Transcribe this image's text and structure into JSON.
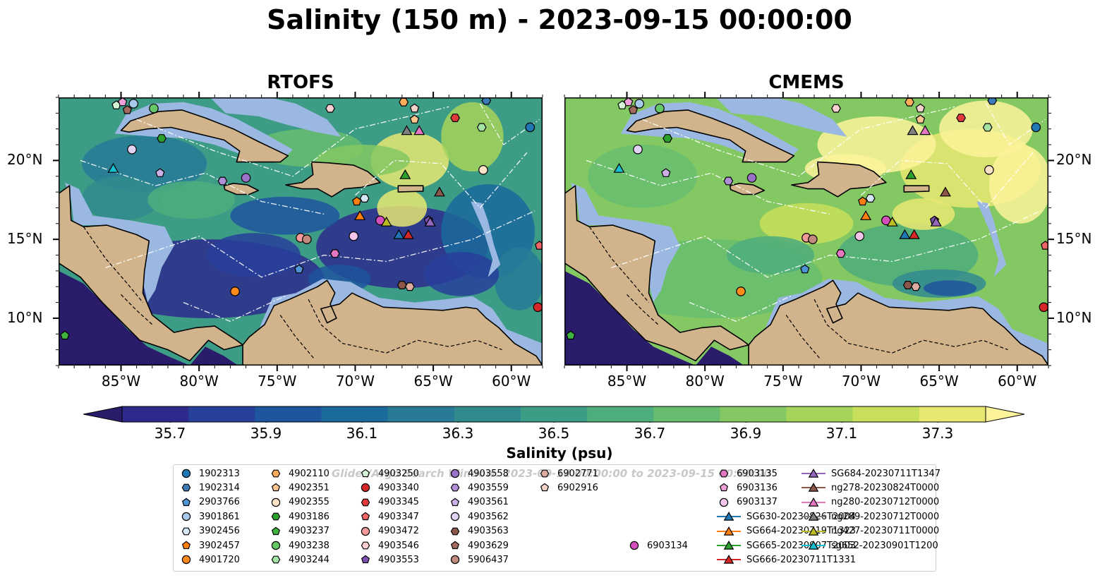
{
  "title": "Salinity (150 m) - 2023-09-15 00:00:00",
  "panels": [
    {
      "name": "RTOFS",
      "theme": "rtofs"
    },
    {
      "name": "CMEMS",
      "theme": "cmems"
    }
  ],
  "map": {
    "lon_range": [
      -89,
      -58
    ],
    "lat_range": [
      7,
      24
    ],
    "lon_ticks": [
      {
        "value": -85,
        "label": "85°W"
      },
      {
        "value": -80,
        "label": "80°W"
      },
      {
        "value": -75,
        "label": "75°W"
      },
      {
        "value": -70,
        "label": "70°W"
      },
      {
        "value": -65,
        "label": "65°W"
      },
      {
        "value": -60,
        "label": "60°W"
      }
    ],
    "lat_ticks": [
      {
        "value": 10,
        "label": "10°N"
      },
      {
        "value": 15,
        "label": "15°N"
      },
      {
        "value": 20,
        "label": "20°N"
      }
    ],
    "colors": {
      "land": "#d2b48c",
      "shelf": "#9bb8e2",
      "coast": "#000000"
    }
  },
  "colorbar": {
    "label": "Salinity (psu)",
    "min": 35.6,
    "max": 37.4,
    "ticks": [
      {
        "value": 35.7,
        "label": "35.7"
      },
      {
        "value": 35.9,
        "label": "35.9"
      },
      {
        "value": 36.1,
        "label": "36.1"
      },
      {
        "value": 36.3,
        "label": "36.3"
      },
      {
        "value": 36.5,
        "label": "36.5"
      },
      {
        "value": 36.7,
        "label": "36.7"
      },
      {
        "value": 36.9,
        "label": "36.9"
      },
      {
        "value": 37.1,
        "label": "37.1"
      },
      {
        "value": 37.3,
        "label": "37.3"
      }
    ],
    "colors": [
      "#2b1b6b",
      "#2d2a8c",
      "#27409a",
      "#1f559d",
      "#1b6a9c",
      "#287a96",
      "#318b8e",
      "#3d9c86",
      "#4ead7c",
      "#66bd6f",
      "#84c863",
      "#a6d45a",
      "#c7df5a",
      "#e6e872",
      "#fdf39a"
    ]
  },
  "legend": {
    "watermark": "Glider/Argo Search Window: 2023-09-14 00:00:00 to 2023-09-15 00:00:00",
    "items": [
      {
        "label": "1902313",
        "marker": "circle",
        "color": "#1f77b4"
      },
      {
        "label": "1902314",
        "marker": "hexagon",
        "color": "#3d7ab8"
      },
      {
        "label": "2903766",
        "marker": "pentagon",
        "color": "#4e93d6"
      },
      {
        "label": "3901861",
        "marker": "circle",
        "color": "#a6c8ea"
      },
      {
        "label": "3902456",
        "marker": "hexagon",
        "color": "#d6e7f7"
      },
      {
        "label": "3902457",
        "marker": "pentagon",
        "color": "#ff7f0e"
      },
      {
        "label": "4901720",
        "marker": "circle",
        "color": "#ff8c1a"
      },
      {
        "label": "4902110",
        "marker": "hexagon",
        "color": "#ffad5a"
      },
      {
        "label": "4902351",
        "marker": "pentagon",
        "color": "#ffc58f"
      },
      {
        "label": "4902355",
        "marker": "circle",
        "color": "#ffe3c6"
      },
      {
        "label": "4903186",
        "marker": "hexagon",
        "color": "#2ca02c"
      },
      {
        "label": "4903237",
        "marker": "pentagon",
        "color": "#3fb13f"
      },
      {
        "label": "4903238",
        "marker": "circle",
        "color": "#66c766"
      },
      {
        "label": "4903244",
        "marker": "hexagon",
        "color": "#a5e3a5"
      },
      {
        "label": "4903250",
        "marker": "pentagon",
        "color": "#d6f5d6"
      },
      {
        "label": "4903340",
        "marker": "circle",
        "color": "#d62728"
      },
      {
        "label": "4903345",
        "marker": "hexagon",
        "color": "#e03a3a"
      },
      {
        "label": "4903347",
        "marker": "pentagon",
        "color": "#ef6464"
      },
      {
        "label": "4903472",
        "marker": "circle",
        "color": "#f59a9a"
      },
      {
        "label": "4903546",
        "marker": "hexagon",
        "color": "#fbd0d0"
      },
      {
        "label": "4903553",
        "marker": "pentagon",
        "color": "#7b52b0"
      },
      {
        "label": "4903558",
        "marker": "circle",
        "color": "#9a72c8"
      },
      {
        "label": "4903559",
        "marker": "hexagon",
        "color": "#b08fd8"
      },
      {
        "label": "4903561",
        "marker": "pentagon",
        "color": "#cbb1e8"
      },
      {
        "label": "4903562",
        "marker": "circle",
        "color": "#e2d3f4"
      },
      {
        "label": "4903563",
        "marker": "hexagon",
        "color": "#8c564b"
      },
      {
        "label": "4903629",
        "marker": "pentagon",
        "color": "#a36a5e"
      },
      {
        "label": "5906437",
        "marker": "circle",
        "color": "#c08a7e"
      },
      {
        "label": "6902771",
        "marker": "hexagon",
        "color": "#dbab9f"
      },
      {
        "label": "6902916",
        "marker": "pentagon",
        "color": "#f3d2c9"
      },
      {
        "label": "6903134",
        "marker": "circle",
        "color": "#d44fb9"
      },
      {
        "label": "6903135",
        "marker": "hexagon",
        "color": "#e377c2"
      },
      {
        "label": "6903136",
        "marker": "pentagon",
        "color": "#eea0d8"
      },
      {
        "label": "6903137",
        "marker": "circle",
        "color": "#f6c6ea"
      },
      {
        "label": "SG630-20230826T2004",
        "marker": "triangle-line",
        "color": "#1f77b4"
      },
      {
        "label": "SG664-20230719T1323",
        "marker": "triangle-line",
        "color": "#ff7f0e"
      },
      {
        "label": "SG665-20230907T2003",
        "marker": "triangle-line",
        "color": "#2ca02c"
      },
      {
        "label": "SG666-20230711T1331",
        "marker": "triangle-line",
        "color": "#d62728"
      },
      {
        "label": "SG684-20230711T1347",
        "marker": "triangle-line",
        "color": "#9467bd"
      },
      {
        "label": "ng278-20230824T0000",
        "marker": "triangle-line",
        "color": "#8c564b"
      },
      {
        "label": "ng280-20230712T0000",
        "marker": "triangle-line",
        "color": "#e377c2"
      },
      {
        "label": "ng289-20230712T0000",
        "marker": "triangle-line",
        "color": "#7f7f7f"
      },
      {
        "label": "ng427-20230711T0000",
        "marker": "triangle-line",
        "color": "#bcbd22"
      },
      {
        "label": "sg652-20230901T1200",
        "marker": "triangle-line",
        "color": "#17becf"
      }
    ]
  },
  "observations": [
    {
      "label": "1902313",
      "lon": -58.8,
      "lat": 22.1
    },
    {
      "label": "1902314",
      "lon": -61.6,
      "lat": 23.8
    },
    {
      "label": "2903766",
      "lon": -73.6,
      "lat": 13.1
    },
    {
      "label": "3901861",
      "lon": -84.2,
      "lat": 23.6
    },
    {
      "label": "3902456",
      "lon": -69.4,
      "lat": 17.6
    },
    {
      "label": "3902457",
      "lon": -69.9,
      "lat": 17.4
    },
    {
      "label": "4901720",
      "lon": -77.7,
      "lat": 11.7
    },
    {
      "label": "4902110",
      "lon": -66.9,
      "lat": 23.7
    },
    {
      "label": "4902351",
      "lon": -66.2,
      "lat": 22.6
    },
    {
      "label": "4902355",
      "lon": -61.8,
      "lat": 19.4
    },
    {
      "label": "4903186",
      "lon": -82.4,
      "lat": 21.4
    },
    {
      "label": "4903237",
      "lon": -88.6,
      "lat": 8.9
    },
    {
      "label": "4903238",
      "lon": -82.9,
      "lat": 23.3
    },
    {
      "label": "4903244",
      "lon": -61.9,
      "lat": 22.1
    },
    {
      "label": "4903250",
      "lon": -85.3,
      "lat": 23.5
    },
    {
      "label": "4903340",
      "lon": -58.3,
      "lat": 10.7
    },
    {
      "label": "4903345",
      "lon": -63.6,
      "lat": 22.7
    },
    {
      "label": "4903347",
      "lon": -58.2,
      "lat": 14.6
    },
    {
      "label": "4903472",
      "lon": -73.5,
      "lat": 15.1
    },
    {
      "label": "4903546",
      "lon": -71.6,
      "lat": 23.3
    },
    {
      "label": "4903553",
      "lon": -65.3,
      "lat": 16.2
    },
    {
      "label": "4903558",
      "lon": -77.0,
      "lat": 18.9
    },
    {
      "label": "4903559",
      "lon": -78.5,
      "lat": 18.7
    },
    {
      "label": "4903561",
      "lon": -82.5,
      "lat": 19.2
    },
    {
      "label": "4903562",
      "lon": -84.3,
      "lat": 20.7
    },
    {
      "label": "4903563",
      "lon": -67.0,
      "lat": 12.1
    },
    {
      "label": "4903629",
      "lon": -84.6,
      "lat": 23.2
    },
    {
      "label": "5906437",
      "lon": -73.1,
      "lat": 15.0
    },
    {
      "label": "6902771",
      "lon": -66.5,
      "lat": 12.0
    },
    {
      "label": "6902916",
      "lon": -66.2,
      "lat": 23.3
    },
    {
      "label": "6903134",
      "lon": -68.4,
      "lat": 16.2
    },
    {
      "label": "6903135",
      "lon": -71.3,
      "lat": 14.1
    },
    {
      "label": "6903136",
      "lon": -84.9,
      "lat": 23.7
    },
    {
      "label": "6903137",
      "lon": -70.1,
      "lat": 15.2
    },
    {
      "label": "SG630-20230826T2004",
      "lon": -67.2,
      "lat": 15.3
    },
    {
      "label": "SG664-20230719T1323",
      "lon": -69.7,
      "lat": 16.5
    },
    {
      "label": "SG665-20230907T2003",
      "lon": -66.8,
      "lat": 19.1
    },
    {
      "label": "SG666-20230711T1331",
      "lon": -66.6,
      "lat": 15.3
    },
    {
      "label": "SG684-20230711T1347",
      "lon": -65.2,
      "lat": 16.1
    },
    {
      "label": "ng278-20230824T0000",
      "lon": -64.6,
      "lat": 18.0
    },
    {
      "label": "ng280-20230712T0000",
      "lon": -65.9,
      "lat": 21.9
    },
    {
      "label": "ng289-20230712T0000",
      "lon": -66.7,
      "lat": 21.9
    },
    {
      "label": "ng427-20230711T0000",
      "lon": -68.0,
      "lat": 16.1
    },
    {
      "label": "sg652-20230901T1200",
      "lon": -85.5,
      "lat": 19.5
    }
  ]
}
